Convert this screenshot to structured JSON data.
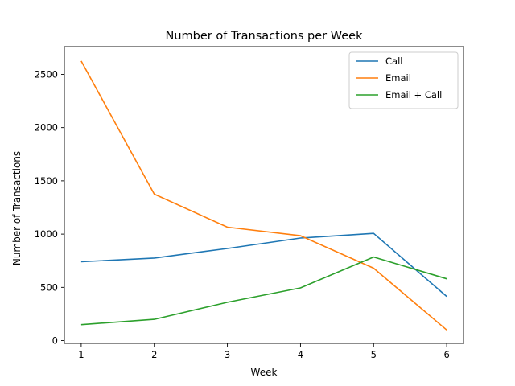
{
  "chart_data": {
    "type": "line",
    "title": "Number of Transactions per Week",
    "xlabel": "Week",
    "ylabel": "Number of Transactions",
    "x": [
      1,
      2,
      3,
      4,
      5,
      6
    ],
    "xlim": [
      0.77,
      6.23
    ],
    "ylim": [
      -26,
      2760
    ],
    "xticks": [
      1,
      2,
      3,
      4,
      5,
      6
    ],
    "yticks": [
      0,
      500,
      1000,
      1500,
      2000,
      2500
    ],
    "grid": false,
    "legend_position": "top-right",
    "series": [
      {
        "name": "Call",
        "color": "#1f77b4",
        "values": [
          740,
          775,
          865,
          963,
          1007,
          415
        ]
      },
      {
        "name": "Email",
        "color": "#ff7f0e",
        "values": [
          2625,
          1375,
          1065,
          985,
          680,
          100
        ]
      },
      {
        "name": "Email + Call",
        "color": "#2ca02c",
        "values": [
          150,
          200,
          360,
          495,
          785,
          580
        ]
      }
    ]
  }
}
